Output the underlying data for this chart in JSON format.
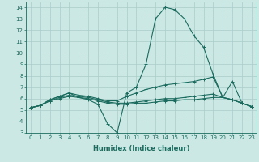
{
  "title": "",
  "xlabel": "Humidex (Indice chaleur)",
  "background_color": "#cce8e4",
  "grid_color": "#aaccca",
  "line_color": "#1a6b5e",
  "xlim": [
    -0.5,
    23.5
  ],
  "ylim": [
    3,
    14.5
  ],
  "xticks": [
    0,
    1,
    2,
    3,
    4,
    5,
    6,
    7,
    8,
    9,
    10,
    11,
    12,
    13,
    14,
    15,
    16,
    17,
    18,
    19,
    20,
    21,
    22,
    23
  ],
  "yticks": [
    3,
    4,
    5,
    6,
    7,
    8,
    9,
    10,
    11,
    12,
    13,
    14
  ],
  "series": [
    [
      5.2,
      5.4,
      5.9,
      6.2,
      6.5,
      6.1,
      5.9,
      5.5,
      3.8,
      3.0,
      6.5,
      7.0,
      9.0,
      13.0,
      14.0,
      13.8,
      13.0,
      11.5,
      10.5,
      8.1,
      6.1,
      7.5,
      5.6,
      5.3
    ],
    [
      5.2,
      5.4,
      5.9,
      6.2,
      6.5,
      6.3,
      6.2,
      6.0,
      5.8,
      5.8,
      6.2,
      6.5,
      6.8,
      7.0,
      7.2,
      7.3,
      7.4,
      7.5,
      7.7,
      7.9,
      6.1,
      5.9,
      5.6,
      5.3
    ],
    [
      5.2,
      5.4,
      5.8,
      6.1,
      6.3,
      6.2,
      6.1,
      5.9,
      5.7,
      5.6,
      5.6,
      5.7,
      5.8,
      5.9,
      6.0,
      6.0,
      6.1,
      6.2,
      6.3,
      6.4,
      6.1,
      5.9,
      5.6,
      5.3
    ],
    [
      5.2,
      5.4,
      5.8,
      6.0,
      6.2,
      6.1,
      6.0,
      5.8,
      5.6,
      5.5,
      5.5,
      5.6,
      5.6,
      5.7,
      5.8,
      5.8,
      5.9,
      5.9,
      6.0,
      6.1,
      6.1,
      5.9,
      5.6,
      5.3
    ]
  ],
  "xlabel_fontsize": 6,
  "tick_fontsize": 5,
  "linewidth": 0.8,
  "markersize": 2.5
}
